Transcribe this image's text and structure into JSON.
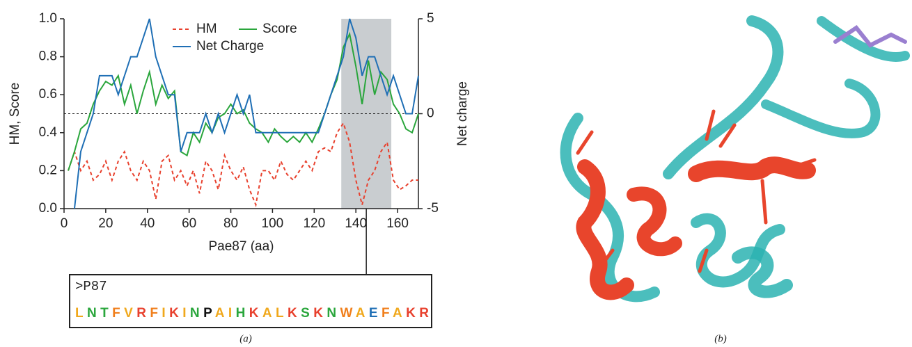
{
  "chart_data": {
    "type": "line",
    "y_label": "HM, Score",
    "y2_label": "Net charge",
    "x_label": "Pae87 (aa)",
    "xlim": [
      0,
      170
    ],
    "xticks": [
      0,
      20,
      40,
      60,
      80,
      100,
      120,
      140,
      160
    ],
    "ylim": [
      0,
      1
    ],
    "yticks": [
      {
        "value": 0,
        "label": "0.0"
      },
      0.2,
      0.4,
      0.6,
      0.8,
      {
        "value": 1,
        "label": "1.0"
      }
    ],
    "y2lim": [
      -5,
      5
    ],
    "y2ticks": [
      -5,
      0,
      5
    ],
    "reference_line": 0.5,
    "highlight_range": [
      133,
      157
    ],
    "x": [
      2,
      5,
      8,
      11,
      14,
      17,
      20,
      23,
      26,
      29,
      32,
      35,
      38,
      41,
      44,
      47,
      50,
      53,
      56,
      59,
      62,
      65,
      68,
      71,
      74,
      77,
      80,
      83,
      86,
      89,
      92,
      95,
      98,
      101,
      104,
      107,
      110,
      113,
      116,
      119,
      122,
      125,
      128,
      131,
      134,
      137,
      140,
      143,
      146,
      149,
      152,
      155,
      158,
      161,
      164,
      167,
      170
    ],
    "series": [
      {
        "name": "HM",
        "color": "#e8412e",
        "dashed": true,
        "values": [
          0.2,
          0.3,
          0.2,
          0.25,
          0.15,
          0.18,
          0.25,
          0.15,
          0.25,
          0.3,
          0.2,
          0.15,
          0.25,
          0.2,
          0.05,
          0.25,
          0.28,
          0.15,
          0.2,
          0.12,
          0.2,
          0.08,
          0.25,
          0.2,
          0.1,
          0.28,
          0.2,
          0.15,
          0.22,
          0.1,
          0.02,
          0.2,
          0.2,
          0.15,
          0.25,
          0.18,
          0.15,
          0.2,
          0.25,
          0.2,
          0.3,
          0.32,
          0.3,
          0.4,
          0.45,
          0.35,
          0.15,
          0.02,
          0.15,
          0.2,
          0.3,
          0.35,
          0.15,
          0.1,
          0.12,
          0.15,
          0.15
        ]
      },
      {
        "name": "Score",
        "color": "#2aa63c",
        "dashed": false,
        "values": [
          0.2,
          0.3,
          0.42,
          0.45,
          0.55,
          0.62,
          0.67,
          0.65,
          0.7,
          0.55,
          0.65,
          0.5,
          0.62,
          0.72,
          0.55,
          0.65,
          0.58,
          0.62,
          0.3,
          0.28,
          0.4,
          0.35,
          0.45,
          0.4,
          0.48,
          0.5,
          0.55,
          0.5,
          0.52,
          0.45,
          0.42,
          0.4,
          0.35,
          0.42,
          0.38,
          0.35,
          0.38,
          0.35,
          0.4,
          0.35,
          0.42,
          0.5,
          0.6,
          0.68,
          0.85,
          0.92,
          0.75,
          0.55,
          0.78,
          0.6,
          0.72,
          0.68,
          0.55,
          0.5,
          0.42,
          0.4,
          0.5
        ]
      },
      {
        "name": "Net Charge",
        "color": "#1f6fb5",
        "dashed": false,
        "axis": "y2",
        "values": [
          null,
          -5,
          -2,
          -1,
          0,
          2,
          2,
          2,
          1,
          2,
          3,
          3,
          4,
          5,
          3,
          2,
          1,
          1,
          -2,
          -1,
          -1,
          -1,
          0,
          -1,
          0,
          -1,
          0,
          1,
          0,
          1,
          -1,
          -1,
          -1,
          -1,
          -1,
          -1,
          -1,
          -1,
          -1,
          -1,
          -1,
          0,
          1,
          2,
          3,
          5,
          4,
          2,
          3,
          3,
          2,
          1,
          2,
          1,
          0,
          0,
          2
        ]
      }
    ],
    "sequence_header": ">P87",
    "residues": [
      {
        "letter": "L",
        "color": "#f0a81c"
      },
      {
        "letter": "N",
        "color": "#2aa63c"
      },
      {
        "letter": "T",
        "color": "#2aa63c"
      },
      {
        "letter": "F",
        "color": "#f07f1c"
      },
      {
        "letter": "V",
        "color": "#f0a81c"
      },
      {
        "letter": "R",
        "color": "#e8412e"
      },
      {
        "letter": "F",
        "color": "#f07f1c"
      },
      {
        "letter": "I",
        "color": "#f0a81c"
      },
      {
        "letter": "K",
        "color": "#e8412e"
      },
      {
        "letter": "I",
        "color": "#f0a81c"
      },
      {
        "letter": "N",
        "color": "#2aa63c"
      },
      {
        "letter": "P",
        "color": "#111111"
      },
      {
        "letter": "A",
        "color": "#f0a81c"
      },
      {
        "letter": "I",
        "color": "#f0a81c"
      },
      {
        "letter": "H",
        "color": "#2aa63c"
      },
      {
        "letter": "K",
        "color": "#e8412e"
      },
      {
        "letter": "A",
        "color": "#f0a81c"
      },
      {
        "letter": "L",
        "color": "#f0a81c"
      },
      {
        "letter": "K",
        "color": "#e8412e"
      },
      {
        "letter": "S",
        "color": "#2aa63c"
      },
      {
        "letter": "K",
        "color": "#e8412e"
      },
      {
        "letter": "N",
        "color": "#2aa63c"
      },
      {
        "letter": "W",
        "color": "#f07f1c"
      },
      {
        "letter": "A",
        "color": "#f0a81c"
      },
      {
        "letter": "E",
        "color": "#1f6fb5"
      },
      {
        "letter": "F",
        "color": "#f07f1c"
      },
      {
        "letter": "A",
        "color": "#f0a81c"
      },
      {
        "letter": "K",
        "color": "#e8412e"
      },
      {
        "letter": "R",
        "color": "#e8412e"
      }
    ],
    "caption_a": "(a)",
    "caption_b": "(b)"
  }
}
